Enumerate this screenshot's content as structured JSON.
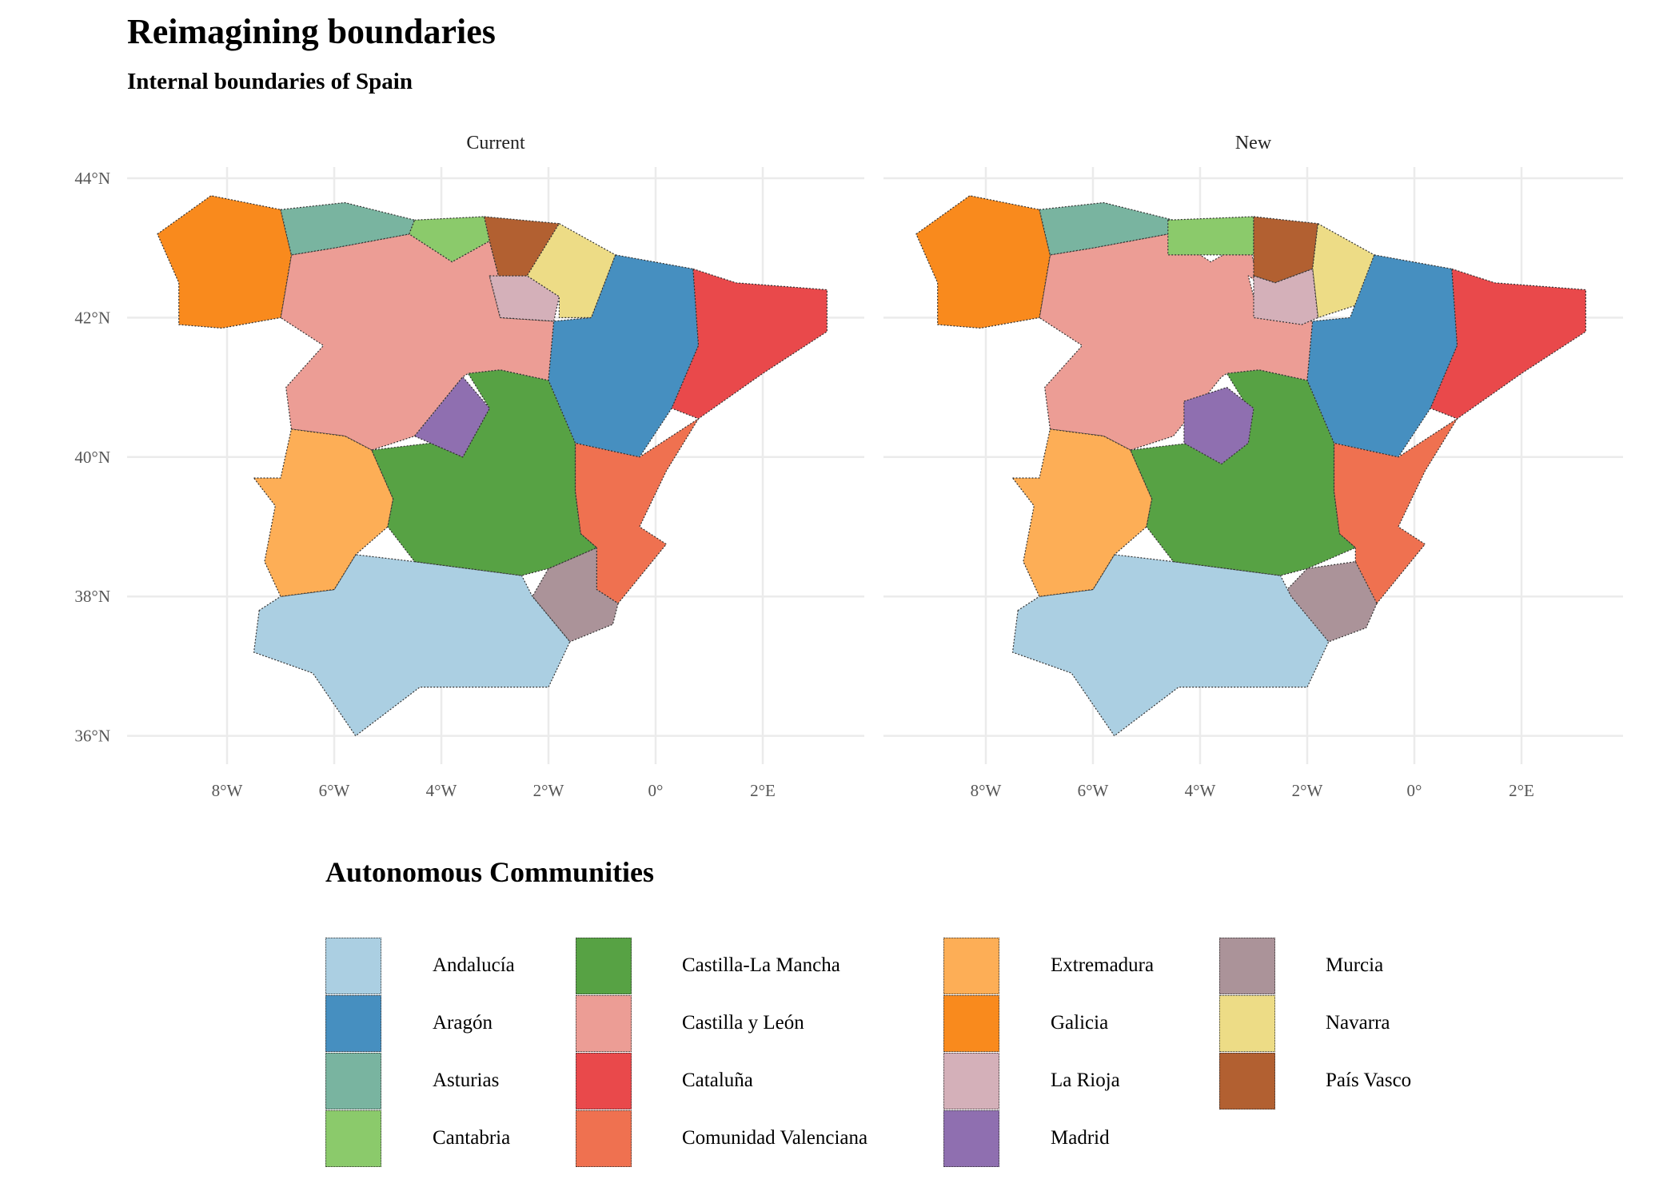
{
  "chart_data": {
    "type": "map",
    "title": "Reimagining boundaries",
    "subtitle": "Internal boundaries of Spain",
    "panels": [
      "Current",
      "New"
    ],
    "x_ticks": [
      "8°W",
      "6°W",
      "4°W",
      "2°W",
      "0°",
      "2°E"
    ],
    "x_tick_values": [
      -8,
      -6,
      -4,
      -2,
      0,
      2
    ],
    "y_ticks": [
      "36°N",
      "38°N",
      "40°N",
      "42°N",
      "44°N"
    ],
    "y_tick_values": [
      36,
      38,
      40,
      42,
      44
    ],
    "xlim": [
      -9.5,
      3.5
    ],
    "ylim": [
      35.7,
      44.2
    ],
    "grid": true,
    "legend": {
      "title": "Autonomous Communities",
      "position": "bottom",
      "entries": [
        {
          "name": "Andalucía",
          "color": "#abcfe2"
        },
        {
          "name": "Aragón",
          "color": "#468fc0"
        },
        {
          "name": "Asturias",
          "color": "#79b4a0"
        },
        {
          "name": "Cantabria",
          "color": "#8bca6b"
        },
        {
          "name": "Castilla-La Mancha",
          "color": "#57a244"
        },
        {
          "name": "Castilla y León",
          "color": "#ec9d95"
        },
        {
          "name": "Cataluña",
          "color": "#e9494b"
        },
        {
          "name": "Comunidad Valenciana",
          "color": "#ef7150"
        },
        {
          "name": "Extremadura",
          "color": "#fdae56"
        },
        {
          "name": "Galicia",
          "color": "#f98a1d"
        },
        {
          "name": "La Rioja",
          "color": "#d4b0b9"
        },
        {
          "name": "Madrid",
          "color": "#8f6fb0"
        },
        {
          "name": "Murcia",
          "color": "#ab9399"
        },
        {
          "name": "Navarra",
          "color": "#eddc86"
        },
        {
          "name": "País Vasco",
          "color": "#b26031"
        }
      ]
    }
  }
}
